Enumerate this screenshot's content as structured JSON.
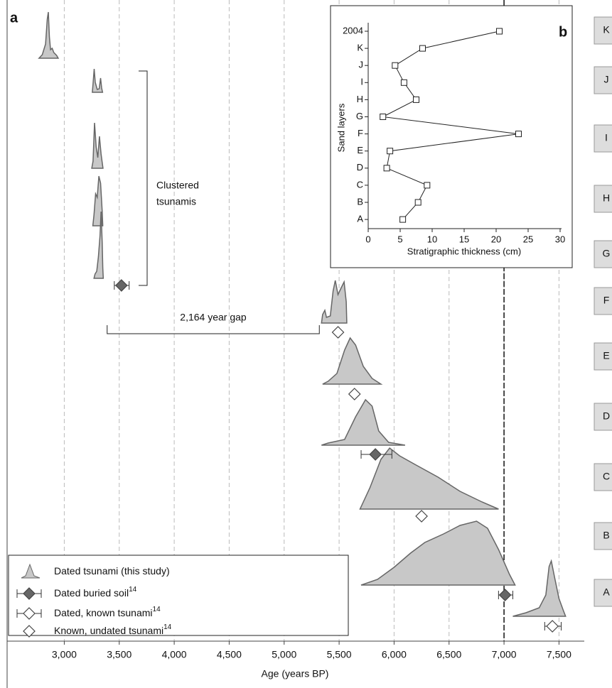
{
  "chart_data": [
    {
      "type": "tsunami-ages",
      "panel": "a",
      "xlabel": "Age (years BP)",
      "xlim": [
        2480,
        7730
      ],
      "xticks": [
        {
          "value": 3000,
          "label": "3,000"
        },
        {
          "value": 3500,
          "label": "3,500"
        },
        {
          "value": 4000,
          "label": "4,000"
        },
        {
          "value": 4500,
          "label": "4,500"
        },
        {
          "value": 5000,
          "label": "5,000"
        },
        {
          "value": 5500,
          "label": "5,500"
        },
        {
          "value": 6000,
          "label": "6,000"
        },
        {
          "value": 6500,
          "label": "6,500"
        },
        {
          "value": 7000,
          "label": "7,000"
        },
        {
          "value": 7500,
          "label": "7,500"
        }
      ],
      "grid": true,
      "reference_line": 7000,
      "layer_labels": [
        "K",
        "J",
        "I",
        "H",
        "G",
        "F",
        "E",
        "D",
        "C",
        "B",
        "A"
      ],
      "color": "#c8c8c8",
      "tsunamis": [
        {
          "ages": [
            2770,
            2800,
            2830,
            2845,
            2855,
            2865,
            2875,
            2890,
            2905,
            2930,
            2945
          ],
          "density": [
            0,
            5,
            20,
            55,
            65,
            30,
            12,
            14,
            8,
            4,
            0
          ]
        },
        {
          "ages": [
            3255,
            3262,
            3272,
            3282,
            3300,
            3318,
            3330,
            3340,
            3348
          ],
          "density": [
            0,
            12,
            33,
            14,
            4,
            5,
            20,
            6,
            0
          ]
        },
        {
          "ages": [
            3250,
            3262,
            3275,
            3290,
            3305,
            3320,
            3335,
            3345,
            3352
          ],
          "density": [
            0,
            10,
            64,
            30,
            15,
            45,
            20,
            8,
            0
          ]
        },
        {
          "ages": [
            3260,
            3270,
            3285,
            3300,
            3315,
            3330,
            3345,
            3350
          ],
          "density": [
            0,
            15,
            45,
            40,
            70,
            60,
            20,
            0
          ]
        },
        {
          "ages": [
            3270,
            3280,
            3295,
            3310,
            3325,
            3335,
            3345,
            3350,
            3355
          ],
          "density": [
            0,
            6,
            10,
            30,
            60,
            94,
            50,
            15,
            0
          ]
        },
        {
          "ages": [
            5340,
            5350,
            5370,
            5385,
            5420,
            5445,
            5465,
            5490,
            5520,
            5545,
            5565,
            5570
          ],
          "density": [
            0,
            12,
            18,
            8,
            10,
            45,
            60,
            40,
            50,
            58,
            30,
            0
          ]
        },
        {
          "ages": [
            5350,
            5400,
            5480,
            5550,
            5600,
            5650,
            5720,
            5800,
            5880
          ],
          "density": [
            0,
            4,
            15,
            48,
            65,
            55,
            25,
            8,
            0
          ]
        },
        {
          "ages": [
            5340,
            5400,
            5550,
            5650,
            5740,
            5800,
            5860,
            5950,
            6100
          ],
          "density": [
            0,
            3,
            8,
            40,
            64,
            55,
            20,
            4,
            0
          ]
        },
        {
          "ages": [
            5690,
            5780,
            5880,
            5960,
            6050,
            6200,
            6400,
            6600,
            6800,
            6950
          ],
          "density": [
            0,
            30,
            70,
            86,
            75,
            62,
            45,
            25,
            10,
            0
          ]
        },
        {
          "ages": [
            5700,
            5850,
            6000,
            6150,
            6280,
            6450,
            6600,
            6750,
            6850,
            6950,
            7050,
            7100
          ],
          "density": [
            0,
            8,
            25,
            45,
            60,
            72,
            84,
            90,
            80,
            50,
            15,
            0
          ]
        },
        {
          "ages": [
            7080,
            7200,
            7320,
            7380,
            7410,
            7430,
            7460,
            7500,
            7540,
            7560
          ],
          "density": [
            0,
            5,
            12,
            30,
            70,
            78,
            55,
            25,
            8,
            0
          ]
        }
      ],
      "markers": [
        {
          "kind": "soil",
          "age": 3520,
          "range": [
            3455,
            3590
          ]
        },
        {
          "kind": "known",
          "age": 5490
        },
        {
          "kind": "known",
          "age": 5640
        },
        {
          "kind": "soil",
          "age": 5830,
          "range": [
            5700,
            5980
          ]
        },
        {
          "kind": "known",
          "age": 6250
        },
        {
          "kind": "soil",
          "age": 7010,
          "range": [
            6950,
            7080
          ]
        },
        {
          "kind": "dated-known",
          "age": 7440,
          "range": [
            7370,
            7520
          ]
        }
      ],
      "annotations": {
        "cluster": [
          "Clustered",
          "tsunamis"
        ],
        "gap": "2,164 year gap",
        "gap_range": [
          3390,
          5320
        ]
      },
      "legend": [
        {
          "kind": "tsunami",
          "label": "Dated tsunami (this study)"
        },
        {
          "kind": "soil",
          "label": "Dated buried soil",
          "ref": "14"
        },
        {
          "kind": "dated-known",
          "label": "Dated, known tsunami",
          "ref": "14"
        },
        {
          "kind": "known",
          "label": "Known, undated tsunami",
          "ref": "14"
        }
      ]
    },
    {
      "type": "line",
      "panel": "b",
      "xlabel": "Stratigraphic thickness (cm)",
      "ylabel": "Sand layers",
      "categories": [
        "2004",
        "K",
        "J",
        "I",
        "H",
        "G",
        "F",
        "E",
        "D",
        "C",
        "B",
        "A"
      ],
      "values": [
        20.5,
        8.5,
        4.2,
        5.6,
        7.5,
        2.3,
        23.5,
        3.4,
        2.9,
        9.2,
        7.8,
        5.4
      ],
      "xlim": [
        0,
        30
      ],
      "xticks": [
        0,
        5,
        10,
        15,
        20,
        25,
        30
      ]
    }
  ]
}
